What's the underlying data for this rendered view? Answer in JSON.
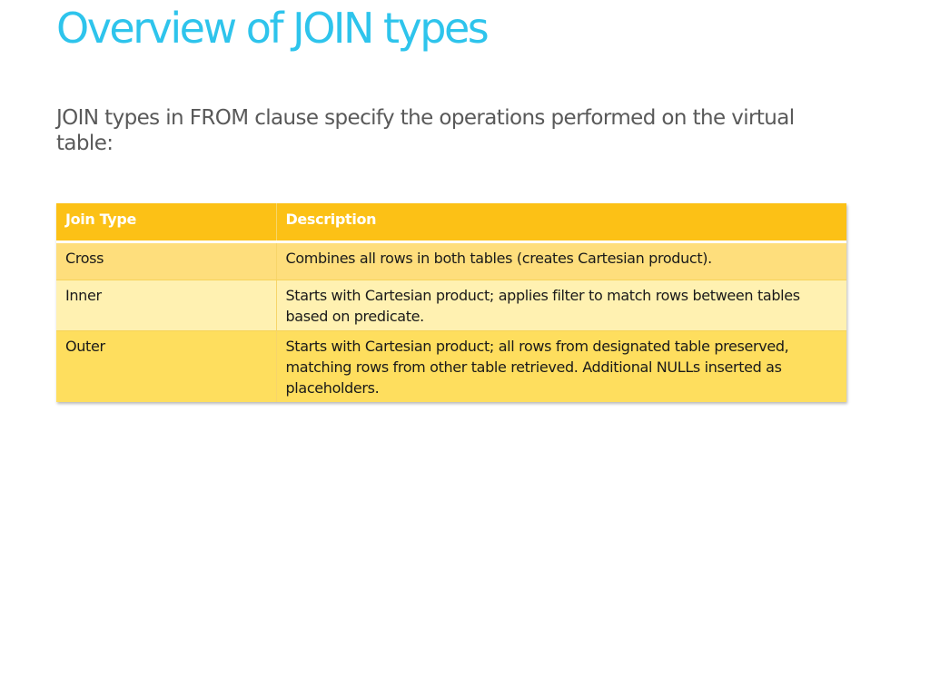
{
  "slide": {
    "title": "Overview of JOIN types",
    "intro": "JOIN types in FROM clause specify the operations performed on the virtual table:"
  },
  "table": {
    "headers": [
      "Join Type",
      "Description"
    ],
    "rows": [
      {
        "type": "Cross",
        "description": "Combines all rows in both tables (creates Cartesian product)."
      },
      {
        "type": "Inner",
        "description": "Starts with Cartesian product; applies filter to match rows between tables based on predicate."
      },
      {
        "type": "Outer",
        "description": "Starts with Cartesian product; all rows from designated table preserved, matching rows from other table retrieved. Additional NULLs inserted as placeholders."
      }
    ]
  },
  "colors": {
    "title": "#2ec4ec",
    "header_bg": "#fcc116",
    "row_band_a": "#fede7c",
    "row_band_b": "#fff1b1"
  }
}
